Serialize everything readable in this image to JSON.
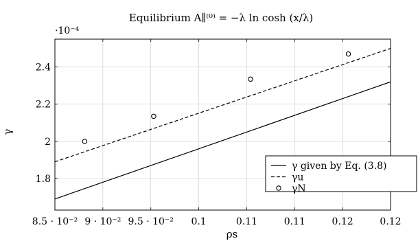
{
  "chart_data": {
    "type": "line",
    "title": "Equilibrium A∥⁽⁰⁾ = −λ ln cosh (x/λ)",
    "xlabel": "ρs",
    "ylabel": "γ",
    "y_exponent_label": "·10⁻⁴",
    "xlim": [
      0.085,
      0.12
    ],
    "ylim": [
      1.63,
      2.55
    ],
    "x_ticks": [
      0.085,
      0.09,
      0.095,
      0.1,
      0.105,
      0.11,
      0.115,
      0.12
    ],
    "x_tick_labels": [
      "8.5 · 10⁻²",
      "9 · 10⁻²",
      "9.5 · 10⁻²",
      "0.1",
      "0.11",
      "0.11",
      "0.12",
      "0.12"
    ],
    "y_ticks": [
      1.8,
      2.0,
      2.2,
      2.4
    ],
    "y_tick_labels": [
      "1.8",
      "2",
      "2.2",
      "2.4"
    ],
    "grid": true,
    "legend_position": "right",
    "series": [
      {
        "name": "γ given by Eq. (3.8)",
        "style": "solid",
        "x": [
          0.085,
          0.12
        ],
        "y": [
          1.69,
          2.32
        ]
      },
      {
        "name": "γu",
        "style": "dashed",
        "x": [
          0.085,
          0.12
        ],
        "y": [
          1.89,
          2.5
        ]
      },
      {
        "name": "γN",
        "style": "markers",
        "x": [
          0.0881,
          0.0953,
          0.1054,
          0.1156
        ],
        "y": [
          2.0,
          2.135,
          2.335,
          2.47
        ]
      }
    ]
  }
}
